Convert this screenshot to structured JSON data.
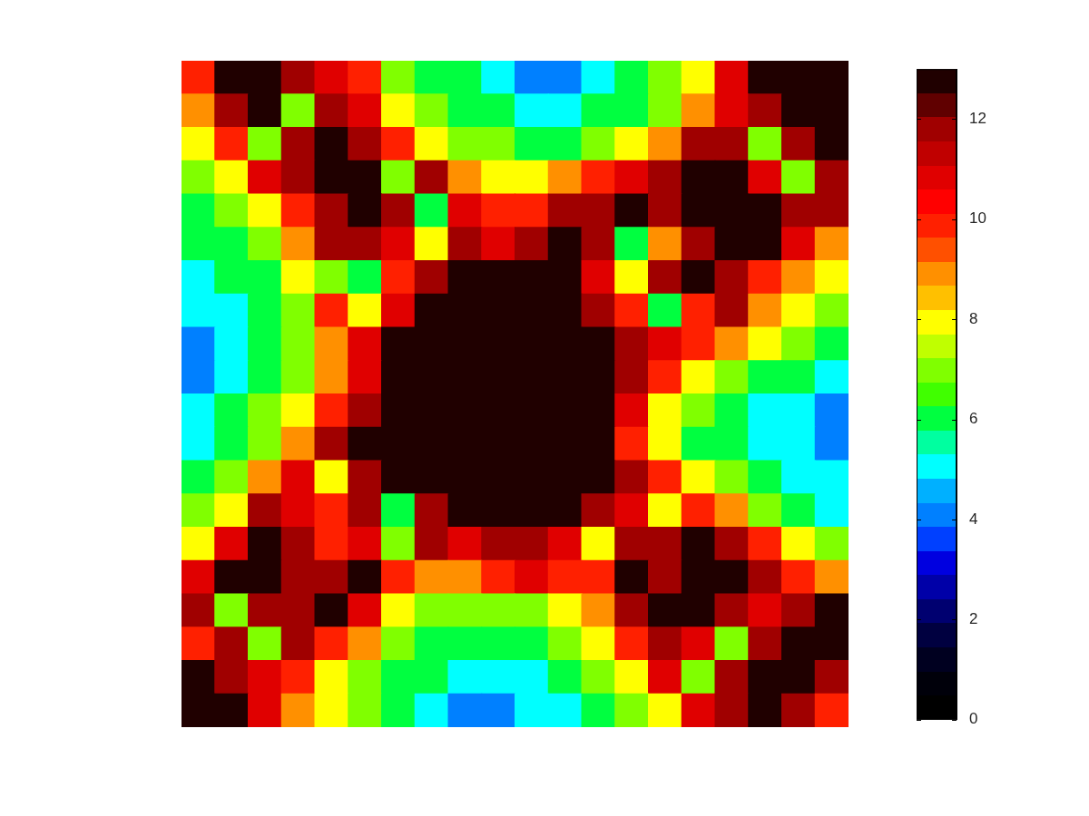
{
  "chart_data": {
    "type": "heatmap",
    "tick_labels": false,
    "cells": [
      [
        10,
        13,
        13,
        12,
        11,
        10,
        7,
        6,
        6,
        5,
        4,
        4,
        5,
        6,
        7,
        8,
        11,
        13,
        13,
        13
      ],
      [
        9,
        12,
        13,
        7,
        12,
        11,
        8,
        7,
        6,
        6,
        5,
        5,
        6,
        6,
        7,
        9,
        11,
        12,
        13,
        13
      ],
      [
        8,
        10,
        7,
        12,
        13,
        12,
        10,
        8,
        7,
        7,
        6,
        6,
        7,
        8,
        9,
        12,
        12,
        7,
        12,
        13
      ],
      [
        7,
        8,
        11,
        12,
        13,
        13,
        7,
        12,
        9,
        8,
        8,
        9,
        10,
        11,
        12,
        13,
        13,
        11,
        7,
        12
      ],
      [
        6,
        7,
        8,
        10,
        12,
        13,
        12,
        6,
        11,
        10,
        10,
        12,
        12,
        13,
        12,
        13,
        13,
        13,
        12,
        12
      ],
      [
        6,
        6,
        7,
        9,
        12,
        12,
        11,
        8,
        12,
        11,
        12,
        13,
        12,
        6,
        9,
        12,
        13,
        13,
        11,
        9
      ],
      [
        5,
        6,
        6,
        8,
        7,
        6,
        10,
        12,
        13,
        13,
        13,
        13,
        11,
        8,
        12,
        13,
        12,
        10,
        9,
        8
      ],
      [
        5,
        5,
        6,
        7,
        10,
        8,
        11,
        13,
        13,
        13,
        13,
        13,
        12,
        10,
        6,
        10,
        12,
        9,
        8,
        7
      ],
      [
        4,
        5,
        6,
        7,
        9,
        11,
        13,
        13,
        13,
        13,
        13,
        13,
        13,
        12,
        11,
        10,
        9,
        8,
        7,
        6
      ],
      [
        4,
        5,
        6,
        7,
        9,
        11,
        13,
        13,
        13,
        13,
        13,
        13,
        13,
        12,
        10,
        8,
        7,
        6,
        6,
        5
      ],
      [
        5,
        6,
        7,
        8,
        10,
        12,
        13,
        13,
        13,
        13,
        13,
        13,
        13,
        11,
        8,
        7,
        6,
        5,
        5,
        4
      ],
      [
        5,
        6,
        7,
        9,
        12,
        13,
        13,
        13,
        13,
        13,
        13,
        13,
        13,
        10,
        8,
        6,
        6,
        5,
        5,
        4
      ],
      [
        6,
        7,
        9,
        11,
        8,
        12,
        13,
        13,
        13,
        13,
        13,
        13,
        13,
        12,
        10,
        8,
        7,
        6,
        5,
        5
      ],
      [
        7,
        8,
        12,
        11,
        10,
        12,
        6,
        12,
        13,
        13,
        13,
        13,
        12,
        11,
        8,
        10,
        9,
        7,
        6,
        5
      ],
      [
        8,
        11,
        13,
        12,
        10,
        11,
        7,
        12,
        11,
        12,
        12,
        11,
        8,
        12,
        12,
        13,
        12,
        10,
        8,
        7
      ],
      [
        11,
        13,
        13,
        12,
        12,
        13,
        10,
        9,
        9,
        10,
        11,
        10,
        10,
        13,
        12,
        13,
        13,
        12,
        10,
        9
      ],
      [
        12,
        7,
        12,
        12,
        13,
        11,
        8,
        7,
        7,
        7,
        7,
        8,
        9,
        12,
        13,
        13,
        12,
        11,
        12,
        13
      ],
      [
        10,
        12,
        7,
        12,
        10,
        9,
        7,
        6,
        6,
        6,
        6,
        7,
        8,
        10,
        12,
        11,
        7,
        12,
        13,
        13
      ],
      [
        13,
        12,
        11,
        10,
        8,
        7,
        6,
        6,
        5,
        5,
        5,
        6,
        7,
        8,
        11,
        7,
        12,
        13,
        13,
        12
      ],
      [
        13,
        13,
        11,
        9,
        8,
        7,
        6,
        5,
        4,
        4,
        5,
        5,
        6,
        7,
        8,
        11,
        12,
        13,
        12,
        10
      ]
    ],
    "colorbar": {
      "range": [
        0,
        13
      ],
      "ticks": [
        0,
        2,
        4,
        6,
        8,
        10,
        12
      ]
    }
  }
}
